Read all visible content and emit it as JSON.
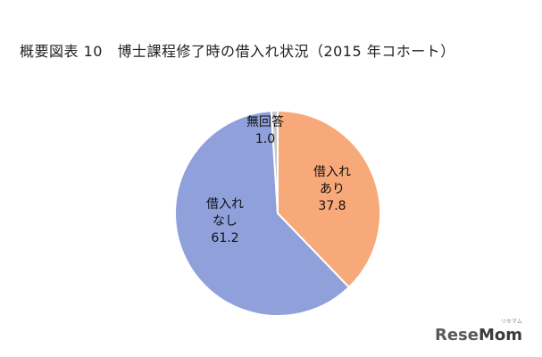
{
  "title": "概要図表 10　博士課程修了時の借入れ状況（2015 年コホート）",
  "chart_data": {
    "type": "pie",
    "title": "概要図表 10　博士課程修了時の借入れ状況（2015 年コホート）",
    "slices": [
      {
        "label_lines": [
          "借入れ",
          "あり"
        ],
        "value": 37.8,
        "value_label": "37.8",
        "color": "#F8A97A"
      },
      {
        "label_lines": [
          "借入れ",
          "なし"
        ],
        "value": 61.2,
        "value_label": "61.2",
        "color": "#8FA0DB"
      },
      {
        "label_lines": [
          "無回答"
        ],
        "value": 1.0,
        "value_label": "1.0",
        "color": "#C8C8C8"
      }
    ]
  },
  "watermark": {
    "brand_part1": "Rese",
    "brand_part2": "Mom",
    "small_text": "リセマム"
  }
}
